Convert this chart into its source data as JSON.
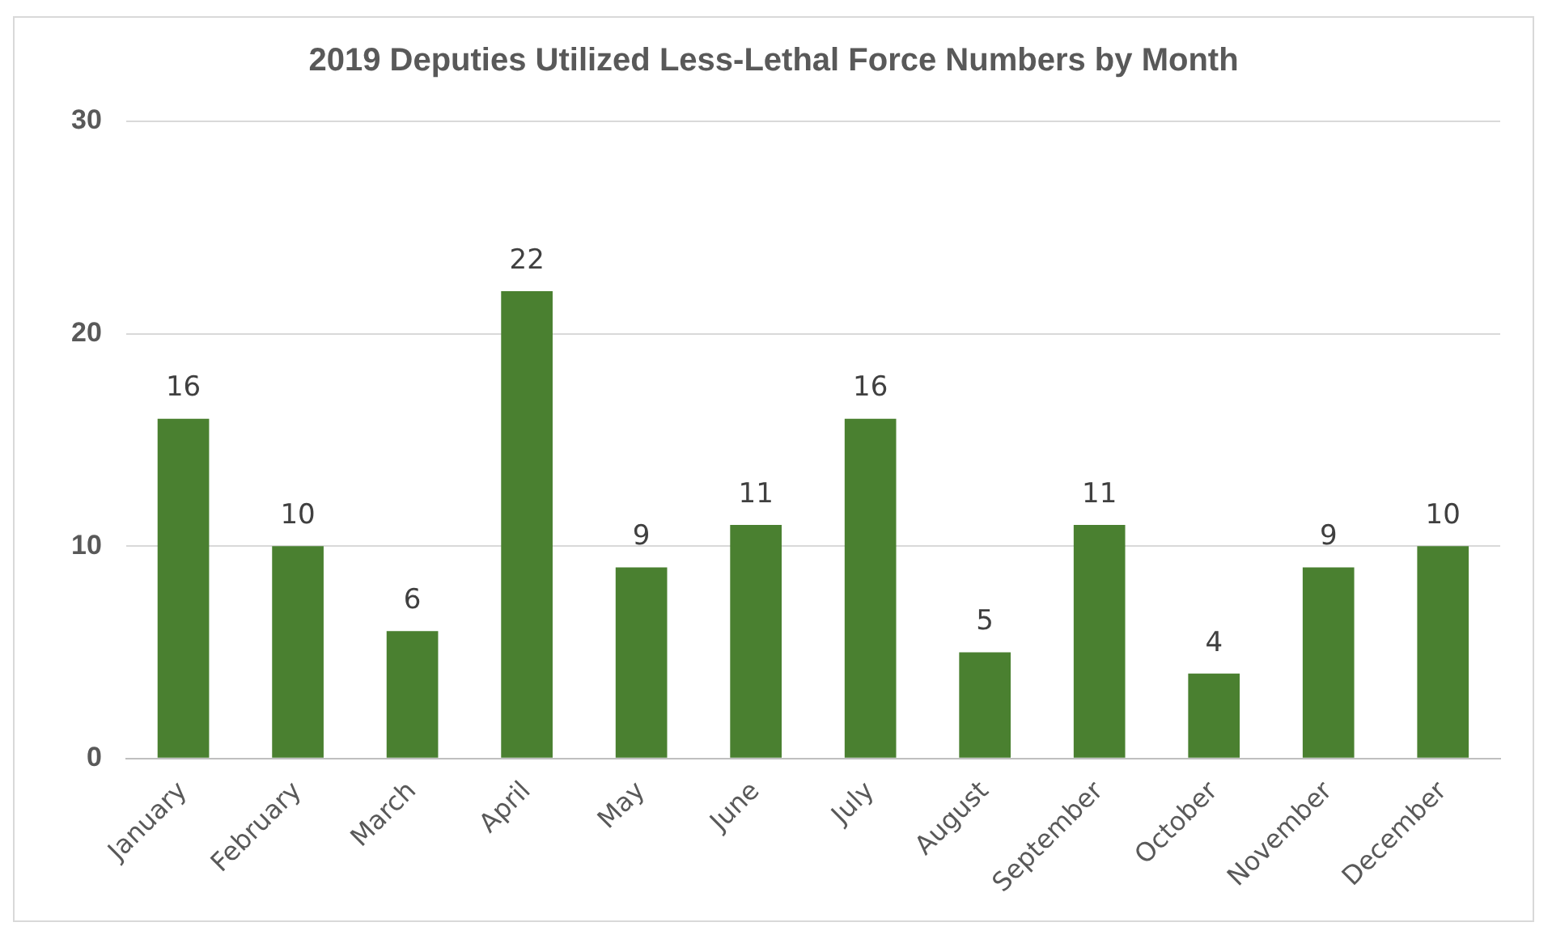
{
  "chart_data": {
    "type": "bar",
    "title": "2019 Deputies Utilized Less-Lethal Force Numbers by Month",
    "categories": [
      "January",
      "February",
      "March",
      "April",
      "May",
      "June",
      "July",
      "August",
      "September",
      "October",
      "November",
      "December"
    ],
    "values": [
      16,
      10,
      6,
      22,
      9,
      11,
      16,
      5,
      11,
      4,
      9,
      10
    ],
    "color": "#4a8030",
    "ylim": [
      0,
      30
    ],
    "yticks": [
      0,
      10,
      20,
      30
    ],
    "grid": "y",
    "data_labels": true,
    "legend": false
  }
}
